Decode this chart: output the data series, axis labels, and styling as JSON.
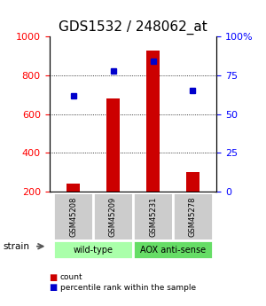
{
  "title": "GDS1532 / 248062_at",
  "samples": [
    "GSM45208",
    "GSM45209",
    "GSM45231",
    "GSM45278"
  ],
  "counts": [
    240,
    680,
    930,
    300
  ],
  "percentiles": [
    62,
    78,
    84,
    65
  ],
  "groups": [
    {
      "label": "wild-type",
      "samples": [
        0,
        1
      ],
      "color": "#aaffaa"
    },
    {
      "label": "AOX anti-sense",
      "samples": [
        2,
        3
      ],
      "color": "#66dd66"
    }
  ],
  "group_label": "strain",
  "bar_color": "#cc0000",
  "dot_color": "#0000cc",
  "left_ylim": [
    200,
    1000
  ],
  "right_ylim": [
    0,
    100
  ],
  "left_yticks": [
    200,
    400,
    600,
    800,
    1000
  ],
  "right_yticks": [
    0,
    25,
    50,
    75,
    100
  ],
  "right_yticklabels": [
    "0",
    "25",
    "50",
    "75",
    "100%"
  ],
  "grid_values": [
    400,
    600,
    800
  ],
  "bg_color": "#ffffff",
  "plot_bg": "#ffffff",
  "gray_box_color": "#cccccc",
  "bar_width": 0.35,
  "title_fontsize": 11,
  "tick_fontsize": 8,
  "label_fontsize": 7.5
}
